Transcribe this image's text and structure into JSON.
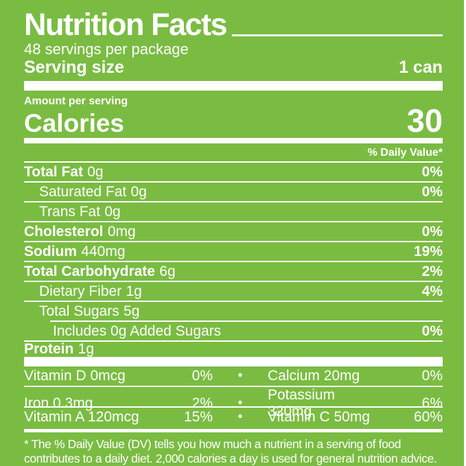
{
  "label": {
    "title": "Nutrition Facts",
    "servings_per_package": "48 servings per package",
    "serving_size_label": "Serving size",
    "serving_size_value": "1 can",
    "amount_per_serving": "Amount per serving",
    "calories_label": "Calories",
    "calories_value": "30",
    "daily_value_header": "% Daily Value*",
    "rows": [
      {
        "name": "Total Fat",
        "amount": "0g",
        "dv": "0%"
      },
      {
        "name": "Saturated Fat",
        "amount": "0g",
        "dv": "0%"
      },
      {
        "name": "Trans Fat",
        "amount": "0g",
        "dv": ""
      },
      {
        "name": "Cholesterol",
        "amount": "0mg",
        "dv": "0%"
      },
      {
        "name": "Sodium",
        "amount": "440mg",
        "dv": "19%"
      },
      {
        "name": "Total Carbohydrate",
        "amount": "6g",
        "dv": "2%"
      },
      {
        "name": "Dietary Fiber",
        "amount": "1g",
        "dv": "4%"
      },
      {
        "name": "Total Sugars",
        "amount": "5g",
        "dv": ""
      },
      {
        "name": "Includes 0g Added Sugars",
        "amount": "",
        "dv": "0%"
      },
      {
        "name": "Protein",
        "amount": "1g",
        "dv": ""
      }
    ],
    "vitamins_bullet": "•",
    "vitamins": [
      {
        "left_name": "Vitamin D 0mcg",
        "left_dv": "0%",
        "right_name": "Calcium 20mg",
        "right_dv": "0%"
      },
      {
        "left_name": "Iron 0.3mg",
        "left_dv": "2%",
        "right_name": "Potassium 320mg",
        "right_dv": "6%"
      },
      {
        "left_name": "Vitamin A 120mcg",
        "left_dv": "15%",
        "right_name": "Vitamin C 50mg",
        "right_dv": "60%"
      }
    ],
    "footnote_lines": [
      "* The % Daily Value (DV) tells you how much a nutrient in a serving of food",
      "contributes to a daily diet. 2,000 calories a day is used for general nutrition advice."
    ],
    "colors": {
      "background": "#7abc42",
      "text": "#ffffff"
    }
  }
}
